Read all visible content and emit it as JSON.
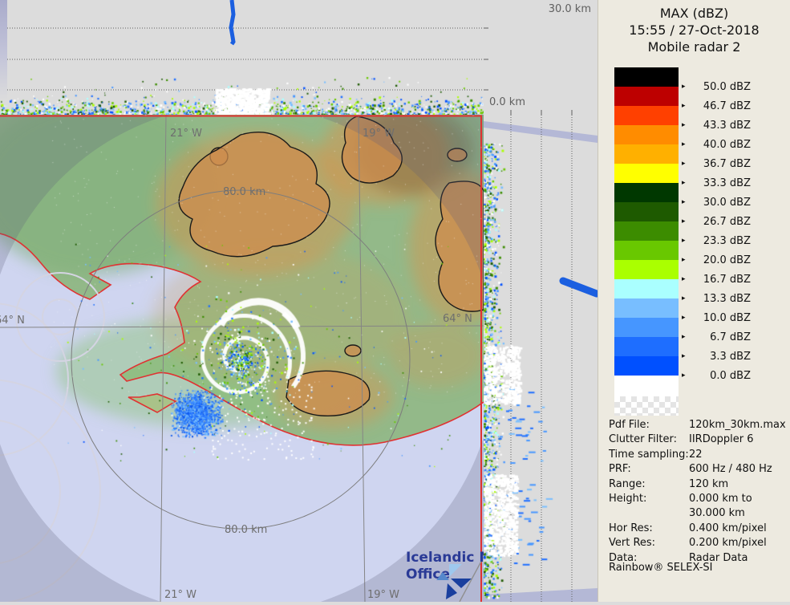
{
  "legend_panel": {
    "title": "MAX (dBZ)",
    "timestamp": "15:55 / 27-Oct-2018",
    "radar_name": "Mobile radar 2",
    "scale_bands": [
      {
        "label": "50.0 dBZ",
        "color": "#000000"
      },
      {
        "label": "46.7 dBZ",
        "color": "#bd0000"
      },
      {
        "label": "43.3 dBZ",
        "color": "#ff4000"
      },
      {
        "label": "40.0 dBZ",
        "color": "#ff8c00"
      },
      {
        "label": "36.7 dBZ",
        "color": "#ffb000"
      },
      {
        "label": "33.3 dBZ",
        "color": "#ffff00"
      },
      {
        "label": "30.0 dBZ",
        "color": "#003800"
      },
      {
        "label": "26.7 dBZ",
        "color": "#1e5a00"
      },
      {
        "label": "23.3 dBZ",
        "color": "#3c8c00"
      },
      {
        "label": "20.0 dBZ",
        "color": "#69c800"
      },
      {
        "label": "16.7 dBZ",
        "color": "#aaff00"
      },
      {
        "label": "13.3 dBZ",
        "color": "#aaffff"
      },
      {
        "label": "10.0 dBZ",
        "color": "#78beff"
      },
      {
        "label": "6.7 dBZ",
        "color": "#4696ff"
      },
      {
        "label": "3.3 dBZ",
        "color": "#1e6eff"
      },
      {
        "label": "0.0 dBZ",
        "color": "#0050ff"
      }
    ],
    "info_rows": [
      {
        "label": "Pdf File:",
        "value": "120km_30km.max"
      },
      {
        "label": "Clutter Filter:",
        "value": "IIRDoppler 6"
      },
      {
        "label": "Time sampling:",
        "value": "22"
      },
      {
        "label": "PRF:",
        "value": "600 Hz / 480 Hz"
      },
      {
        "label": "Range:",
        "value": "120 km"
      },
      {
        "label": "Height:",
        "value": "0.000 km to"
      },
      {
        "label": "",
        "value": "30.000 km"
      },
      {
        "label": "Hor Res:",
        "value": "0.400 km/pixel"
      },
      {
        "label": "Vert Res:",
        "value": "0.200 km/pixel"
      },
      {
        "label": "Data:",
        "value": "Radar Data"
      }
    ],
    "brand": "Rainbow® SELEX-SI"
  },
  "height_axis": {
    "max_label": "30.0 km",
    "min_label": "0.0 km"
  },
  "map": {
    "geo_labels": {
      "meridian_left": "21° W",
      "meridian_right": "19° W",
      "parallel": "64° N"
    },
    "range_ring_label": "80.0 km",
    "logo": {
      "line1": "Icelandic Met",
      "line2": "Office"
    }
  },
  "colors": {
    "scan_border": "#e03232",
    "echo_track_blue": "#1b5fe0",
    "water_inside": "#cfd5f0",
    "panel_bg": "#edeae0"
  }
}
